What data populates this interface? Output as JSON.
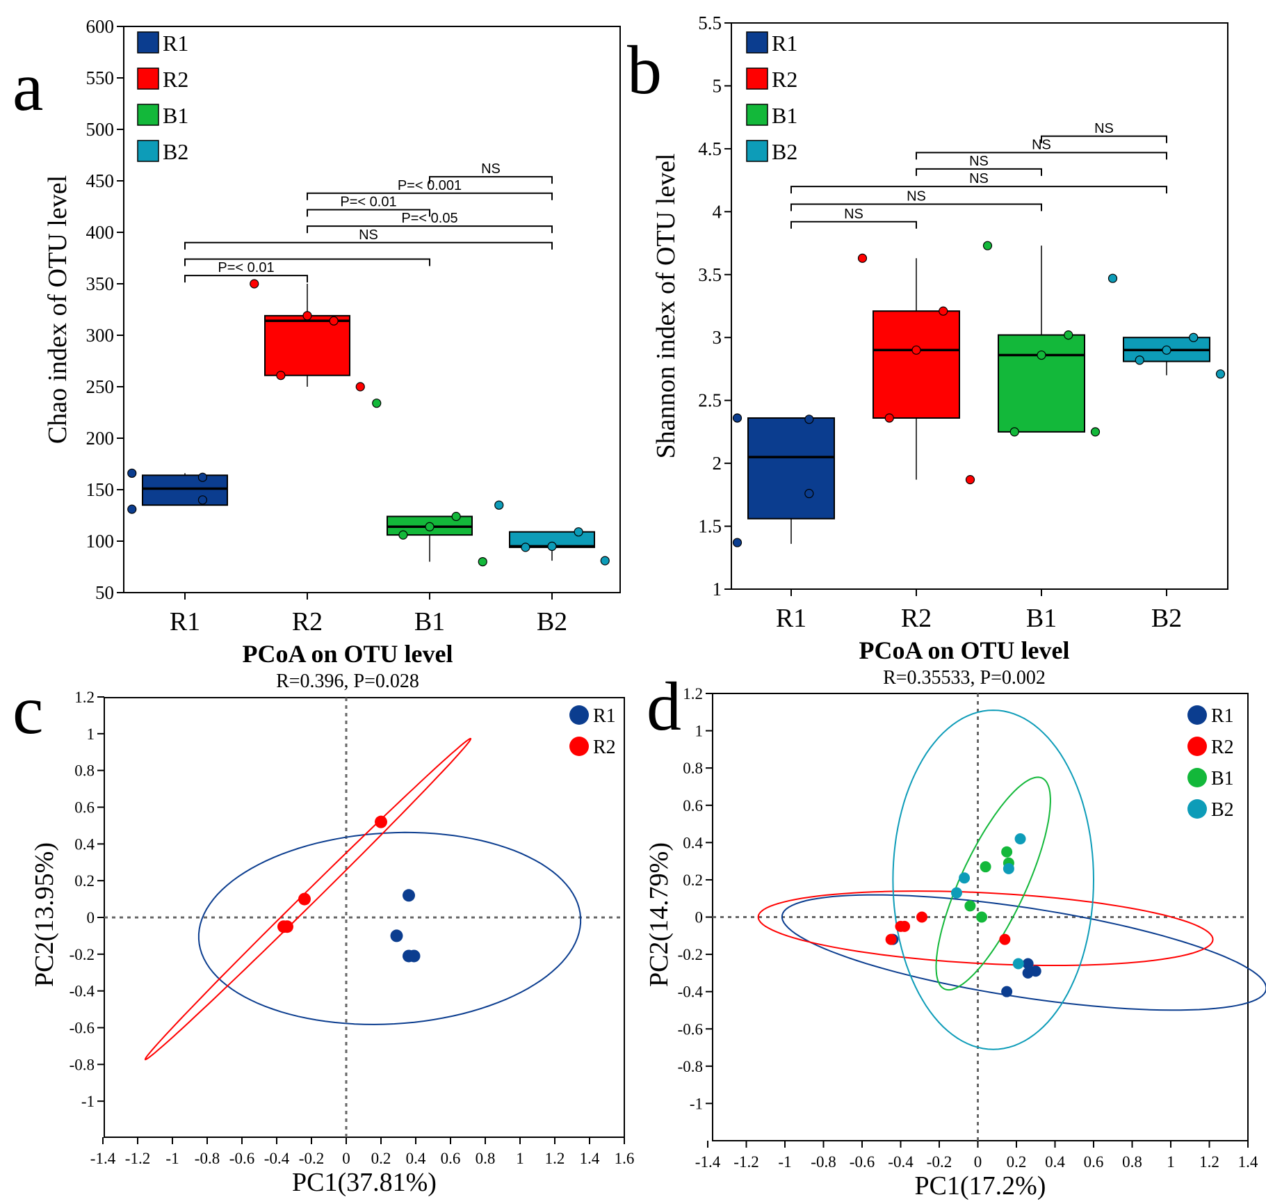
{
  "colors": {
    "R1": "#0b3d8f",
    "R2": "#ff0000",
    "B1": "#13b83a",
    "B2": "#0d9cb8"
  },
  "chart_data": [
    {
      "panel": "a",
      "type": "box",
      "ylabel": "Chao index of OTU level",
      "xlabel": "",
      "ylim": [
        50,
        600
      ],
      "yticks": [
        "50",
        "100",
        "150",
        "200",
        "250",
        "300",
        "350",
        "400",
        "450",
        "500",
        "550",
        "600"
      ],
      "categories": [
        "R1",
        "R2",
        "B1",
        "B2"
      ],
      "legend": [
        "R1",
        "R2",
        "B1",
        "B2"
      ],
      "boxes": [
        {
          "name": "R1",
          "q1": 135,
          "median": 151,
          "q3": 164,
          "wmin": 135,
          "wmax": 166,
          "points": [
            166,
            162,
            140,
            131
          ]
        },
        {
          "name": "R2",
          "q1": 261,
          "median": 314,
          "q3": 319,
          "wmin": 250,
          "wmax": 350,
          "points": [
            350,
            314,
            319,
            261,
            250
          ]
        },
        {
          "name": "B1",
          "q1": 106,
          "median": 114,
          "q3": 124,
          "wmin": 80,
          "wmax": 124,
          "points": [
            234,
            124,
            114,
            106,
            80
          ]
        },
        {
          "name": "B2",
          "q1": 94,
          "median": 95,
          "q3": 109,
          "wmin": 81,
          "wmax": 109,
          "points": [
            135,
            109,
            95,
            94,
            81
          ]
        }
      ],
      "brackets": [
        {
          "from": 3,
          "to": 4,
          "y": 454,
          "label": "NS"
        },
        {
          "from": 2,
          "to": 4,
          "y": 438,
          "label": "P=< 0.001"
        },
        {
          "from": 2,
          "to": 3,
          "y": 422,
          "label": "P=< 0.01"
        },
        {
          "from": 2,
          "to": 4,
          "y": 406,
          "label": "P=< 0.05"
        },
        {
          "from": 1,
          "to": 4,
          "y": 390,
          "label": "NS"
        },
        {
          "from": 1,
          "to": 3,
          "y": 374,
          "label": ""
        },
        {
          "from": 1,
          "to": 2,
          "y": 358,
          "label": "P=< 0.01"
        }
      ]
    },
    {
      "panel": "b",
      "type": "box",
      "ylabel": "Shannon index of OTU level",
      "xlabel": "",
      "ylim": [
        1,
        5.5
      ],
      "yticks": [
        "1",
        "1.5",
        "2",
        "2.5",
        "3",
        "3.5",
        "4",
        "4.5",
        "5",
        "5.5"
      ],
      "categories": [
        "R1",
        "R2",
        "B1",
        "B2"
      ],
      "legend": [
        "R1",
        "R2",
        "B1",
        "B2"
      ],
      "boxes": [
        {
          "name": "R1",
          "q1": 1.56,
          "median": 2.05,
          "q3": 2.36,
          "wmin": 1.36,
          "wmax": 2.36,
          "points": [
            2.36,
            2.35,
            1.76,
            1.37
          ]
        },
        {
          "name": "R2",
          "q1": 2.36,
          "median": 2.9,
          "q3": 3.21,
          "wmin": 1.87,
          "wmax": 3.63,
          "points": [
            3.63,
            3.21,
            2.9,
            2.36,
            1.87
          ]
        },
        {
          "name": "B1",
          "q1": 2.25,
          "median": 2.86,
          "q3": 3.02,
          "wmin": 2.25,
          "wmax": 3.73,
          "points": [
            3.73,
            3.02,
            2.86,
            2.25,
            2.25
          ]
        },
        {
          "name": "B2",
          "q1": 2.81,
          "median": 2.9,
          "q3": 3.0,
          "wmin": 2.7,
          "wmax": 3.0,
          "points": [
            3.47,
            3.0,
            2.9,
            2.82,
            2.71
          ]
        }
      ],
      "brackets": [
        {
          "from": 3,
          "to": 4,
          "y": 4.6,
          "label": "NS"
        },
        {
          "from": 2,
          "to": 4,
          "y": 4.47,
          "label": "NS"
        },
        {
          "from": 2,
          "to": 3,
          "y": 4.34,
          "label": "NS"
        },
        {
          "from": 1,
          "to": 4,
          "y": 4.2,
          "label": "NS"
        },
        {
          "from": 1,
          "to": 3,
          "y": 4.06,
          "label": "NS"
        },
        {
          "from": 1,
          "to": 2,
          "y": 3.92,
          "label": "NS"
        }
      ]
    },
    {
      "panel": "c",
      "type": "scatter",
      "title": "PCoA on OTU level",
      "subtitle": "R=0.396, P=0.028",
      "xlabel": "PC1(37.81%)",
      "ylabel": "PC2(13.95%)",
      "xlim": [
        -1.4,
        1.6
      ],
      "ylim": [
        -1.2,
        1.2
      ],
      "xticks": [
        "-1.4",
        "-1.2",
        "-1",
        "-0.8",
        "-0.6",
        "-0.4",
        "-0.2",
        "0",
        "0.2",
        "0.4",
        "0.6",
        "0.8",
        "1",
        "1.2",
        "1.4",
        "1.6"
      ],
      "yticks": [
        "-1",
        "-0.8",
        "-0.6",
        "-0.4",
        "-0.2",
        "0",
        "0.2",
        "0.4",
        "0.6",
        "0.8",
        "1",
        "1.2"
      ],
      "legend": [
        "R1",
        "R2"
      ],
      "series": [
        {
          "name": "R1",
          "points": [
            [
              0.36,
              0.12
            ],
            [
              0.29,
              -0.1
            ],
            [
              0.36,
              -0.21
            ],
            [
              0.39,
              -0.21
            ]
          ],
          "ellipse": {
            "cx": 0.25,
            "cy": -0.06,
            "rx": 1.1,
            "ry": 0.52,
            "angle": 3
          }
        },
        {
          "name": "R2",
          "points": [
            [
              0.2,
              0.52
            ],
            [
              -0.24,
              0.1
            ],
            [
              -0.36,
              -0.05
            ],
            [
              -0.34,
              -0.05
            ]
          ],
          "ellipse": {
            "cx": -0.22,
            "cy": 0.1,
            "rx": 1.28,
            "ry": 0.035,
            "angle": 43
          }
        }
      ]
    },
    {
      "panel": "d",
      "type": "scatter",
      "title": "PCoA on OTU level",
      "subtitle": "R=0.35533, P=0.002",
      "xlabel": "PC1(17.2%)",
      "ylabel": "PC2(14.79%)",
      "xlim": [
        -1.4,
        1.4
      ],
      "ylim": [
        -1.2,
        1.2
      ],
      "xticks": [
        "-1.4",
        "-1.2",
        "-1",
        "-0.8",
        "-0.6",
        "-0.4",
        "-0.2",
        "0",
        "0.2",
        "0.4",
        "0.6",
        "0.8",
        "1",
        "1.2",
        "1.4"
      ],
      "yticks": [
        "-1",
        "-0.8",
        "-0.6",
        "-0.4",
        "-0.2",
        "0",
        "0.2",
        "0.4",
        "0.6",
        "0.8",
        "1",
        "1.2"
      ],
      "legend": [
        "R1",
        "R2",
        "B1",
        "B2"
      ],
      "series": [
        {
          "name": "R1",
          "points": [
            [
              -0.44,
              -0.12
            ],
            [
              0.26,
              -0.25
            ],
            [
              0.26,
              -0.3
            ],
            [
              0.3,
              -0.29
            ],
            [
              0.15,
              -0.4
            ]
          ],
          "ellipse": {
            "cx": 0.24,
            "cy": -0.19,
            "rx": 1.27,
            "ry": 0.24,
            "angle": -9
          }
        },
        {
          "name": "R2",
          "points": [
            [
              -0.45,
              -0.12
            ],
            [
              -0.4,
              -0.05
            ],
            [
              -0.38,
              -0.05
            ],
            [
              -0.29,
              0.0
            ],
            [
              0.14,
              -0.12
            ]
          ],
          "ellipse": {
            "cx": 0.04,
            "cy": -0.06,
            "rx": 1.18,
            "ry": 0.19,
            "angle": -3
          }
        },
        {
          "name": "B1",
          "points": [
            [
              0.15,
              0.35
            ],
            [
              0.16,
              0.29
            ],
            [
              0.04,
              0.27
            ],
            [
              -0.04,
              0.06
            ],
            [
              0.02,
              0.0
            ]
          ],
          "ellipse": {
            "cx": 0.08,
            "cy": 0.18,
            "rx": 0.62,
            "ry": 0.17,
            "angle": 66
          }
        },
        {
          "name": "B2",
          "points": [
            [
              0.22,
              0.42
            ],
            [
              0.16,
              0.26
            ],
            [
              -0.07,
              0.21
            ],
            [
              -0.11,
              0.13
            ],
            [
              0.21,
              -0.25
            ]
          ],
          "ellipse": {
            "cx": 0.08,
            "cy": 0.2,
            "rx": 0.52,
            "ry": 0.91,
            "angle": 0
          }
        }
      ]
    }
  ],
  "panel_letters": [
    "a",
    "b",
    "c",
    "d"
  ]
}
